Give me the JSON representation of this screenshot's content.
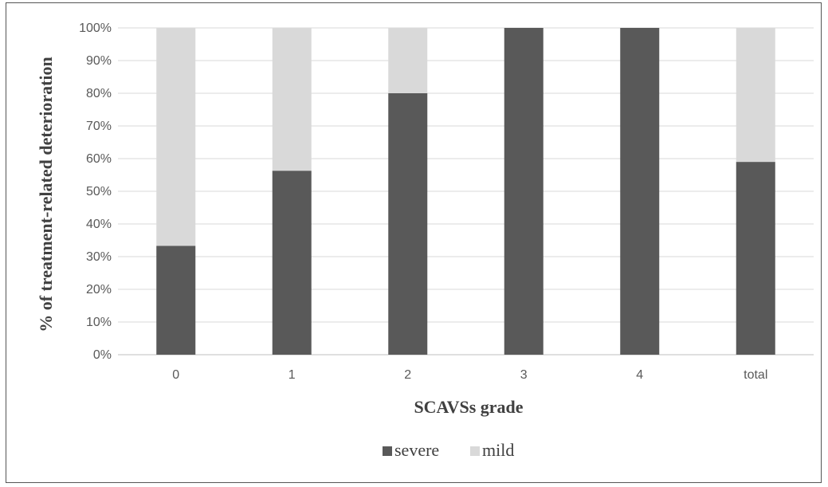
{
  "chart_data": {
    "type": "bar",
    "stacked": true,
    "categories": [
      "0",
      "1",
      "2",
      "3",
      "4",
      "total"
    ],
    "series": [
      {
        "name": "severe",
        "color": "#595959",
        "values": [
          33.3,
          56.3,
          80,
          100,
          100,
          59
        ]
      },
      {
        "name": "mild",
        "color": "#d9d9d9",
        "values": [
          66.7,
          43.7,
          20,
          0,
          0,
          41
        ]
      }
    ],
    "xlabel": "SCAVSs grade",
    "ylabel": "% of treatment-related deterioration",
    "ylim": [
      0,
      100
    ],
    "yticks": [
      "0%",
      "10%",
      "20%",
      "30%",
      "40%",
      "50%",
      "60%",
      "70%",
      "80%",
      "90%",
      "100%"
    ],
    "grid": true,
    "legend_position": "bottom",
    "gridline_color": "#d9d9d9"
  }
}
